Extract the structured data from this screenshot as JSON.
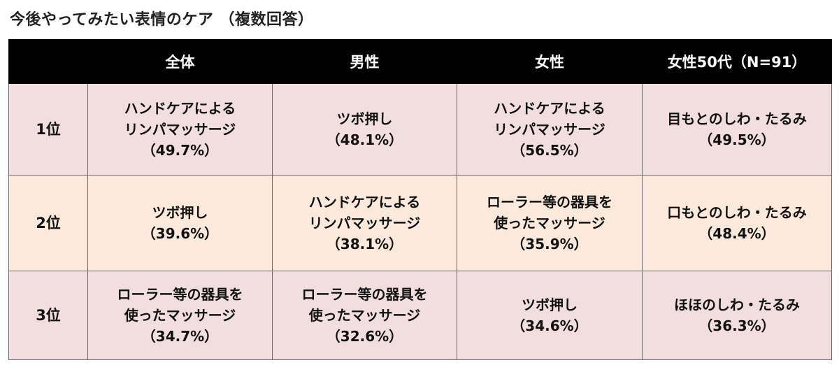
{
  "title": "今後やってみたい表情のケア （複数回答）",
  "headers": [
    "",
    "全体",
    "男性",
    "女性",
    "女性50代（N=91）"
  ],
  "rows": [
    {
      "rank": "1位",
      "cells": [
        {
          "lines": [
            "ハンドケアによる",
            "リンパマッサージ"
          ],
          "pct": "（49.7%）"
        },
        {
          "lines": [
            "ツボ押し"
          ],
          "pct": "（48.1%）"
        },
        {
          "lines": [
            "ハンドケアによる",
            "リンパマッサージ"
          ],
          "pct": "（56.5%）"
        },
        {
          "lines": [
            "目もとのしわ・たるみ"
          ],
          "pct": "（49.5%）"
        }
      ]
    },
    {
      "rank": "2位",
      "cells": [
        {
          "lines": [
            "ツボ押し"
          ],
          "pct": "（39.6%）"
        },
        {
          "lines": [
            "ハンドケアによる",
            "リンパマッサージ"
          ],
          "pct": "（38.1%）"
        },
        {
          "lines": [
            "ローラー等の器具を",
            "使ったマッサージ"
          ],
          "pct": "（35.9%）"
        },
        {
          "lines": [
            "口もとのしわ・たるみ"
          ],
          "pct": "（48.4%）"
        }
      ]
    },
    {
      "rank": "3位",
      "cells": [
        {
          "lines": [
            "ローラー等の器具を",
            "使ったマッサージ"
          ],
          "pct": "（34.7%）"
        },
        {
          "lines": [
            "ローラー等の器具を",
            "使ったマッサージ"
          ],
          "pct": "（32.6%）"
        },
        {
          "lines": [
            "ツボ押し"
          ],
          "pct": "（34.6%）"
        },
        {
          "lines": [
            "ほほのしわ・たるみ"
          ],
          "pct": "（36.3%）"
        }
      ]
    }
  ],
  "colors": {
    "header_bg": "#000000",
    "row1_bg": "#f2dede",
    "row2_bg": "#fdeadc",
    "row3_bg": "#f2dede"
  }
}
